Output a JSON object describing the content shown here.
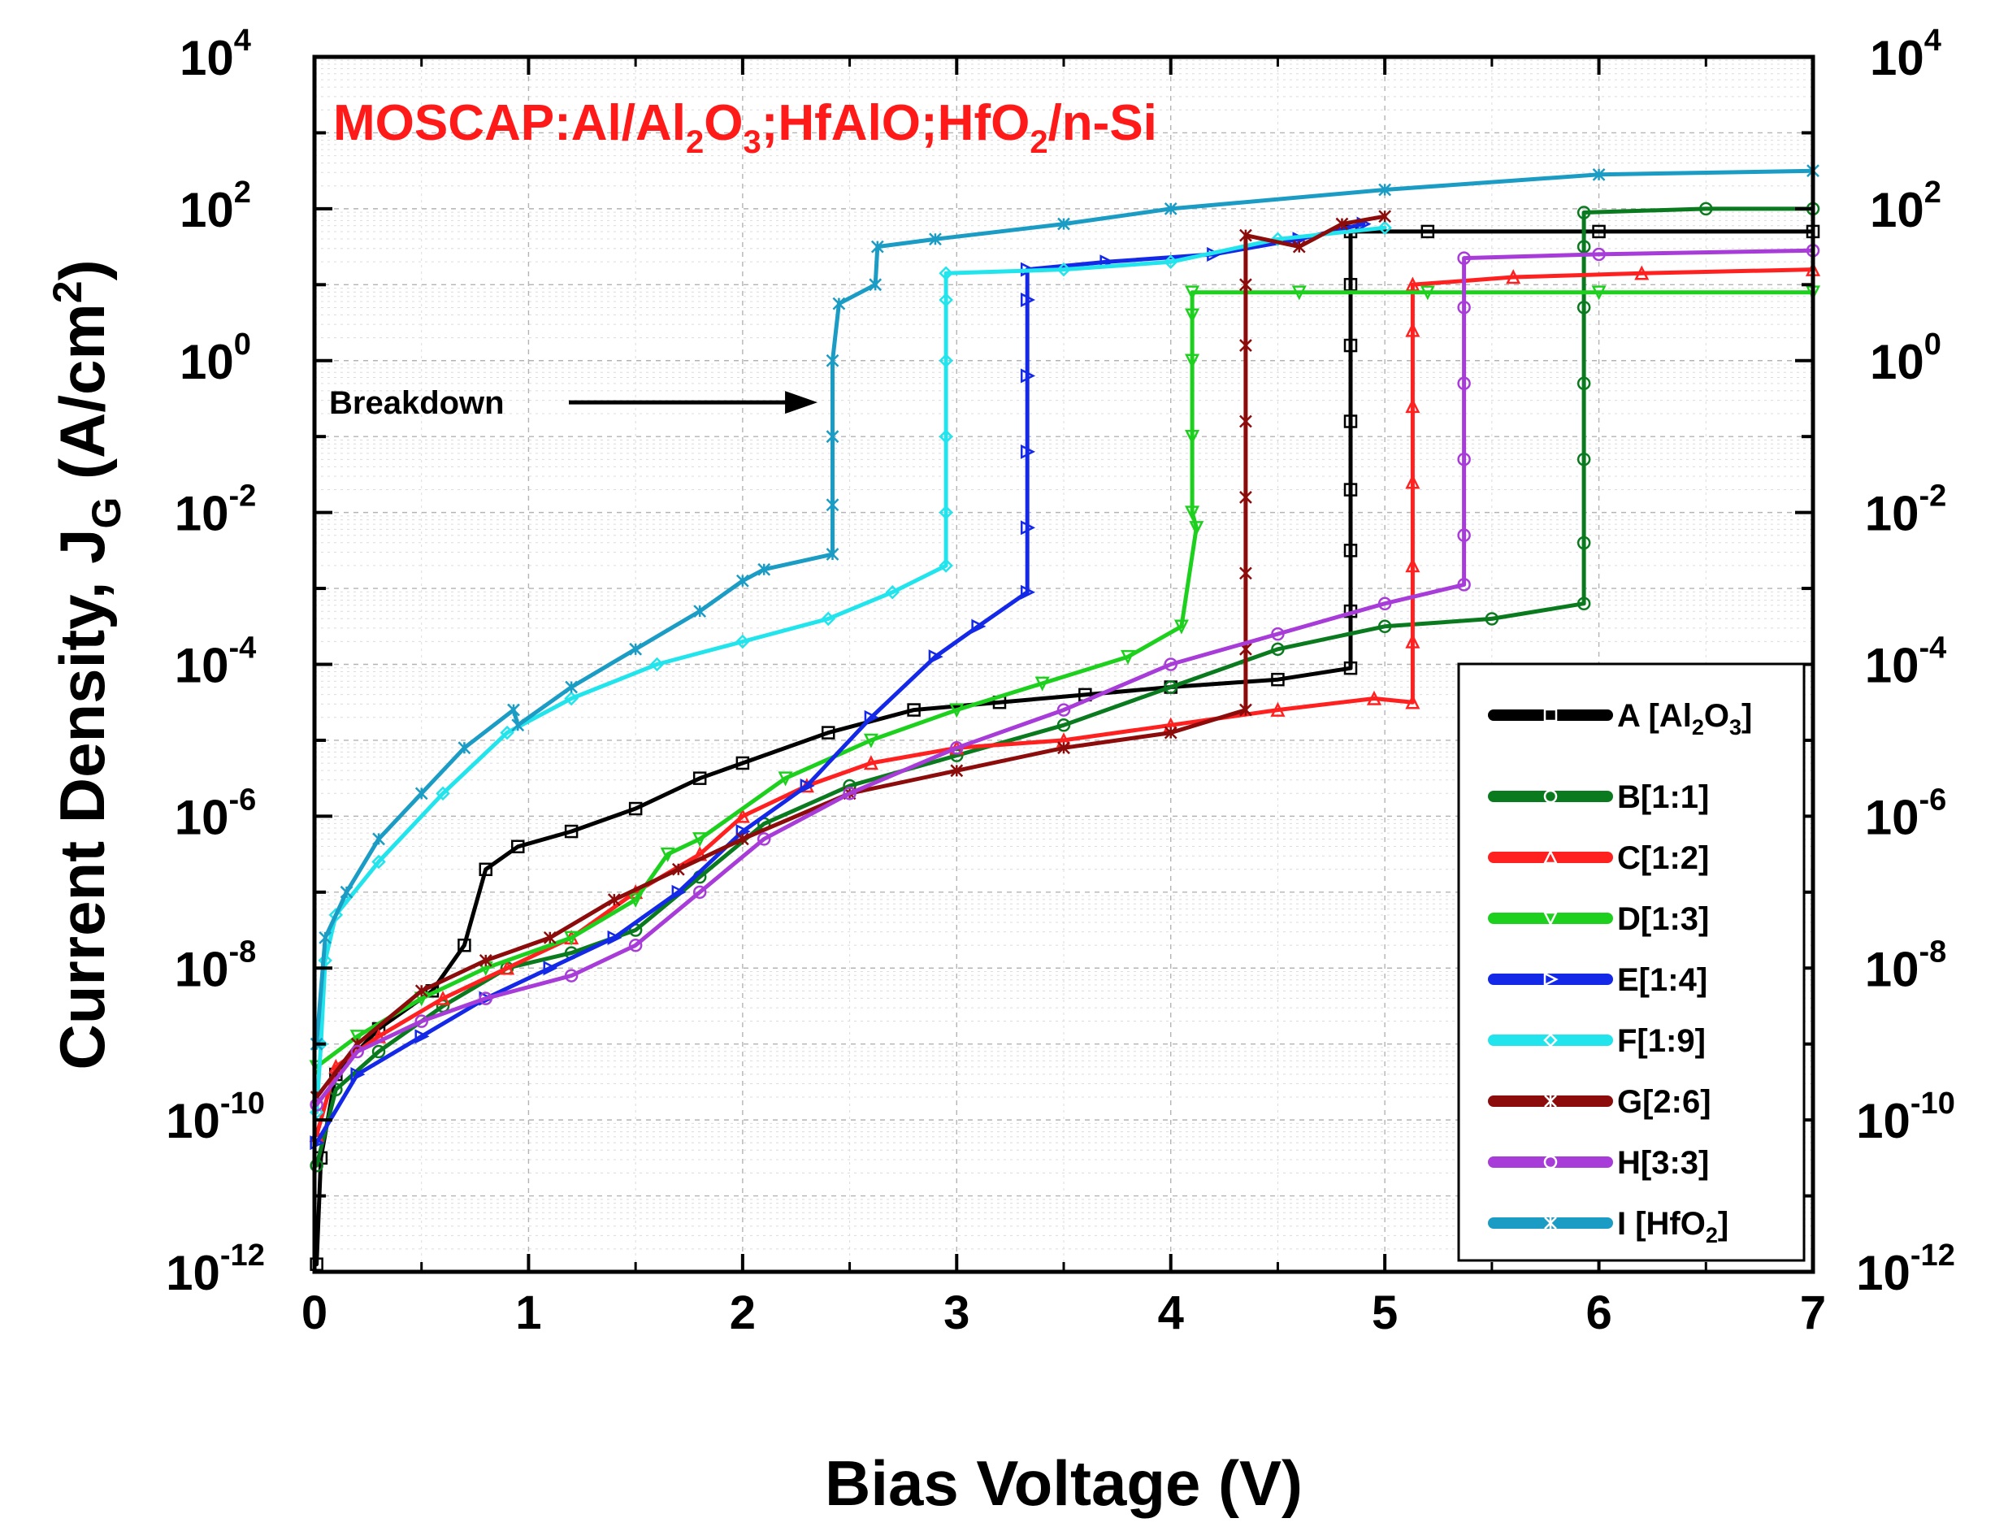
{
  "chart_data": {
    "type": "line",
    "title": {
      "parts": [
        "MOSCAP:Al/Al",
        "2",
        "O",
        "3",
        ";HfAlO;HfO",
        "2",
        "/n-Si"
      ]
    },
    "xlabel": "Bias Voltage (V)",
    "ylabel": {
      "main": "Current Density, J",
      "sub": "G",
      "unit": " (A/cm",
      "unit_exp": "2",
      "close": ")"
    },
    "xlim": [
      0,
      7
    ],
    "x_ticks": [
      "0",
      "1",
      "2",
      "3",
      "4",
      "5",
      "6",
      "7"
    ],
    "y_scale": "log",
    "ylim_exp": [
      -12,
      4
    ],
    "y_ticks": [
      {
        "base": "10",
        "exp": "4"
      },
      {
        "base": "10",
        "exp": "2"
      },
      {
        "base": "10",
        "exp": "0"
      },
      {
        "base": "10",
        "exp": "-2"
      },
      {
        "base": "10",
        "exp": "-4"
      },
      {
        "base": "10",
        "exp": "-6"
      },
      {
        "base": "10",
        "exp": "-8"
      },
      {
        "base": "10",
        "exp": "-10"
      },
      {
        "base": "10",
        "exp": "-12"
      }
    ],
    "grid": true,
    "legend_position": "bottom-right",
    "annotation": {
      "text": "Breakdown",
      "x": 2.35,
      "y_log": -0.55
    },
    "series": [
      {
        "name": "A [Al2O3]",
        "label_parts": [
          "A [Al",
          "2",
          "O",
          "3",
          "]"
        ],
        "color": "#000000",
        "marker": "square",
        "points": [
          [
            0.01,
            -11.9
          ],
          [
            0.03,
            -10.5
          ],
          [
            0.1,
            -9.4
          ],
          [
            0.3,
            -8.8
          ],
          [
            0.55,
            -8.3
          ],
          [
            0.7,
            -7.7
          ],
          [
            0.8,
            -6.7
          ],
          [
            0.95,
            -6.4
          ],
          [
            1.2,
            -6.2
          ],
          [
            1.5,
            -5.9
          ],
          [
            1.8,
            -5.5
          ],
          [
            2.0,
            -5.3
          ],
          [
            2.4,
            -4.9
          ],
          [
            2.8,
            -4.6
          ],
          [
            3.2,
            -4.5
          ],
          [
            3.6,
            -4.4
          ],
          [
            4.0,
            -4.3
          ],
          [
            4.5,
            -4.2
          ],
          [
            4.84,
            -4.05
          ],
          [
            4.84,
            -3.3
          ],
          [
            4.84,
            -2.5
          ],
          [
            4.84,
            -1.7
          ],
          [
            4.84,
            -0.8
          ],
          [
            4.84,
            0.2
          ],
          [
            4.84,
            1.0
          ],
          [
            4.84,
            1.7
          ],
          [
            5.2,
            1.7
          ],
          [
            6.0,
            1.7
          ],
          [
            7.0,
            1.7
          ]
        ]
      },
      {
        "name": "B[1:1]",
        "label_parts": [
          "B[1:1]"
        ],
        "color": "#0a7a1e",
        "marker": "circle",
        "points": [
          [
            0.01,
            -10.6
          ],
          [
            0.1,
            -9.6
          ],
          [
            0.3,
            -9.1
          ],
          [
            0.6,
            -8.5
          ],
          [
            0.9,
            -8.0
          ],
          [
            1.2,
            -7.8
          ],
          [
            1.5,
            -7.5
          ],
          [
            1.8,
            -6.8
          ],
          [
            2.1,
            -6.1
          ],
          [
            2.5,
            -5.6
          ],
          [
            3.0,
            -5.2
          ],
          [
            3.5,
            -4.8
          ],
          [
            4.0,
            -4.3
          ],
          [
            4.5,
            -3.8
          ],
          [
            5.0,
            -3.5
          ],
          [
            5.5,
            -3.4
          ],
          [
            5.93,
            -3.2
          ],
          [
            5.93,
            -2.4
          ],
          [
            5.93,
            -1.3
          ],
          [
            5.93,
            -0.3
          ],
          [
            5.93,
            0.7
          ],
          [
            5.93,
            1.5
          ],
          [
            5.93,
            1.95
          ],
          [
            6.5,
            2.0
          ],
          [
            7.0,
            2.0
          ]
        ]
      },
      {
        "name": "C[1:2]",
        "label_parts": [
          "C[1:2]"
        ],
        "color": "#ff2020",
        "marker": "triangle",
        "points": [
          [
            0.01,
            -10.2
          ],
          [
            0.1,
            -9.3
          ],
          [
            0.3,
            -8.9
          ],
          [
            0.6,
            -8.4
          ],
          [
            0.9,
            -8.0
          ],
          [
            1.2,
            -7.6
          ],
          [
            1.5,
            -7.0
          ],
          [
            1.8,
            -6.5
          ],
          [
            2.0,
            -6.0
          ],
          [
            2.3,
            -5.6
          ],
          [
            2.6,
            -5.3
          ],
          [
            3.0,
            -5.1
          ],
          [
            3.5,
            -5.0
          ],
          [
            4.0,
            -4.8
          ],
          [
            4.5,
            -4.6
          ],
          [
            4.95,
            -4.45
          ],
          [
            5.13,
            -4.5
          ],
          [
            5.13,
            -3.7
          ],
          [
            5.13,
            -2.7
          ],
          [
            5.13,
            -1.6
          ],
          [
            5.13,
            -0.6
          ],
          [
            5.13,
            0.4
          ],
          [
            5.13,
            1.0
          ],
          [
            5.6,
            1.1
          ],
          [
            6.2,
            1.15
          ],
          [
            7.0,
            1.2
          ]
        ]
      },
      {
        "name": "D[1:3]",
        "label_parts": [
          "D[1:3]"
        ],
        "color": "#1ed01e",
        "marker": "triangle-down",
        "points": [
          [
            0.01,
            -9.3
          ],
          [
            0.2,
            -8.9
          ],
          [
            0.5,
            -8.4
          ],
          [
            0.8,
            -8.0
          ],
          [
            1.2,
            -7.6
          ],
          [
            1.5,
            -7.1
          ],
          [
            1.65,
            -6.5
          ],
          [
            1.8,
            -6.3
          ],
          [
            2.2,
            -5.5
          ],
          [
            2.6,
            -5.0
          ],
          [
            3.0,
            -4.6
          ],
          [
            3.4,
            -4.25
          ],
          [
            3.8,
            -3.9
          ],
          [
            4.05,
            -3.5
          ],
          [
            4.12,
            -2.2
          ],
          [
            4.1,
            -2.0
          ],
          [
            4.1,
            -1.0
          ],
          [
            4.1,
            0.0
          ],
          [
            4.1,
            0.6
          ],
          [
            4.1,
            0.9
          ],
          [
            4.6,
            0.9
          ],
          [
            5.2,
            0.9
          ],
          [
            6.0,
            0.9
          ],
          [
            7.0,
            0.9
          ]
        ]
      },
      {
        "name": "E[1:4]",
        "label_parts": [
          "E[1:4]"
        ],
        "color": "#1428e8",
        "marker": "triangle-right",
        "points": [
          [
            0.01,
            -10.3
          ],
          [
            0.2,
            -9.4
          ],
          [
            0.5,
            -8.9
          ],
          [
            0.8,
            -8.4
          ],
          [
            1.1,
            -8.0
          ],
          [
            1.4,
            -7.6
          ],
          [
            1.7,
            -7.0
          ],
          [
            2.0,
            -6.2
          ],
          [
            2.3,
            -5.6
          ],
          [
            2.6,
            -4.7
          ],
          [
            2.9,
            -3.9
          ],
          [
            3.1,
            -3.5
          ],
          [
            3.33,
            -3.05
          ],
          [
            3.33,
            -2.2
          ],
          [
            3.33,
            -1.2
          ],
          [
            3.33,
            -0.2
          ],
          [
            3.33,
            0.8
          ],
          [
            3.33,
            1.2
          ],
          [
            3.7,
            1.3
          ],
          [
            4.2,
            1.4
          ],
          [
            4.6,
            1.6
          ],
          [
            4.9,
            1.8
          ]
        ]
      },
      {
        "name": "F[1:9]",
        "label_parts": [
          "F[1:9]"
        ],
        "color": "#22e4ec",
        "marker": "diamond",
        "points": [
          [
            0.01,
            -9.9
          ],
          [
            0.03,
            -9.0
          ],
          [
            0.05,
            -7.9
          ],
          [
            0.1,
            -7.3
          ],
          [
            0.3,
            -6.6
          ],
          [
            0.6,
            -5.7
          ],
          [
            0.9,
            -4.9
          ],
          [
            1.2,
            -4.45
          ],
          [
            1.6,
            -4.0
          ],
          [
            2.0,
            -3.7
          ],
          [
            2.4,
            -3.4
          ],
          [
            2.7,
            -3.05
          ],
          [
            2.95,
            -2.7
          ],
          [
            2.95,
            -2.0
          ],
          [
            2.95,
            -1.0
          ],
          [
            2.95,
            0.0
          ],
          [
            2.95,
            0.8
          ],
          [
            2.95,
            1.15
          ],
          [
            3.5,
            1.2
          ],
          [
            4.0,
            1.3
          ],
          [
            4.5,
            1.6
          ],
          [
            5.0,
            1.75
          ]
        ]
      },
      {
        "name": "G[2:6]",
        "label_parts": [
          "G[2:6]"
        ],
        "color": "#8c0c0c",
        "marker": "x",
        "points": [
          [
            0.01,
            -9.7
          ],
          [
            0.2,
            -9.0
          ],
          [
            0.5,
            -8.3
          ],
          [
            0.8,
            -7.9
          ],
          [
            1.1,
            -7.6
          ],
          [
            1.4,
            -7.1
          ],
          [
            1.7,
            -6.7
          ],
          [
            2.0,
            -6.3
          ],
          [
            2.5,
            -5.7
          ],
          [
            3.0,
            -5.4
          ],
          [
            3.5,
            -5.1
          ],
          [
            4.0,
            -4.9
          ],
          [
            4.35,
            -4.6
          ],
          [
            4.35,
            -3.8
          ],
          [
            4.35,
            -2.8
          ],
          [
            4.35,
            -1.8
          ],
          [
            4.35,
            -0.8
          ],
          [
            4.35,
            0.2
          ],
          [
            4.35,
            1.0
          ],
          [
            4.35,
            1.65
          ],
          [
            4.6,
            1.5
          ],
          [
            4.8,
            1.8
          ],
          [
            5.0,
            1.9
          ]
        ]
      },
      {
        "name": "H[3:3]",
        "label_parts": [
          "H[3:3]"
        ],
        "color": "#a83cd8",
        "marker": "circle",
        "points": [
          [
            0.01,
            -9.8
          ],
          [
            0.2,
            -9.1
          ],
          [
            0.5,
            -8.7
          ],
          [
            0.8,
            -8.4
          ],
          [
            1.2,
            -8.1
          ],
          [
            1.5,
            -7.7
          ],
          [
            1.8,
            -7.0
          ],
          [
            2.1,
            -6.3
          ],
          [
            2.5,
            -5.7
          ],
          [
            3.0,
            -5.1
          ],
          [
            3.5,
            -4.6
          ],
          [
            4.0,
            -4.0
          ],
          [
            4.5,
            -3.6
          ],
          [
            5.0,
            -3.2
          ],
          [
            5.37,
            -2.95
          ],
          [
            5.37,
            -2.3
          ],
          [
            5.37,
            -1.3
          ],
          [
            5.37,
            -0.3
          ],
          [
            5.37,
            0.7
          ],
          [
            5.37,
            1.35
          ],
          [
            6.0,
            1.4
          ],
          [
            7.0,
            1.45
          ]
        ]
      },
      {
        "name": "I [HfO2]",
        "label_parts": [
          "I [HfO",
          "2",
          "]"
        ],
        "color": "#1a9cc4",
        "marker": "star",
        "points": [
          [
            0.01,
            -9.0
          ],
          [
            0.05,
            -7.6
          ],
          [
            0.15,
            -7.0
          ],
          [
            0.3,
            -6.3
          ],
          [
            0.5,
            -5.7
          ],
          [
            0.7,
            -5.1
          ],
          [
            0.93,
            -4.6
          ],
          [
            0.95,
            -4.8
          ],
          [
            1.2,
            -4.3
          ],
          [
            1.5,
            -3.8
          ],
          [
            1.8,
            -3.3
          ],
          [
            2.0,
            -2.9
          ],
          [
            2.1,
            -2.75
          ],
          [
            2.42,
            -2.55
          ],
          [
            2.42,
            -1.9
          ],
          [
            2.42,
            -1.0
          ],
          [
            2.42,
            0.0
          ],
          [
            2.45,
            0.75
          ],
          [
            2.62,
            1.0
          ],
          [
            2.63,
            1.5
          ],
          [
            2.9,
            1.6
          ],
          [
            3.5,
            1.8
          ],
          [
            4.0,
            2.0
          ],
          [
            5.0,
            2.25
          ],
          [
            6.0,
            2.45
          ],
          [
            7.0,
            2.5
          ]
        ]
      }
    ]
  }
}
